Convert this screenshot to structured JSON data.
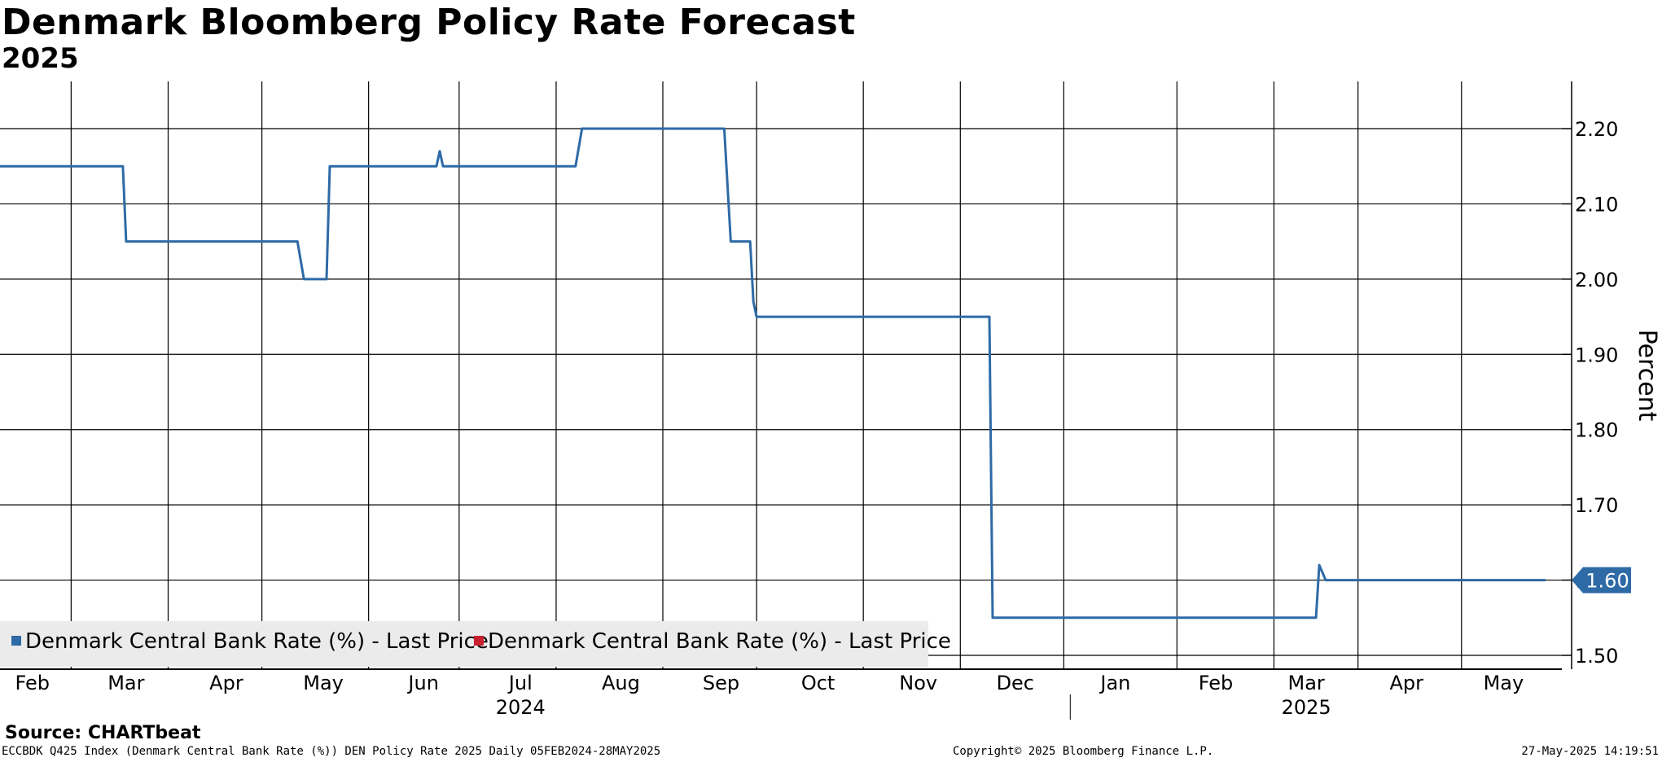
{
  "chart_data": {
    "type": "line",
    "title": "Denmark Bloomberg Policy Rate Forecast",
    "subtitle": "2025",
    "ylabel": "Percent",
    "ylim": [
      1.5,
      2.25
    ],
    "yticks": [
      "2.20",
      "2.10",
      "2.00",
      "1.90",
      "1.80",
      "1.70",
      "1.60",
      "1.50"
    ],
    "ytick_values": [
      2.2,
      2.1,
      2.0,
      1.9,
      1.8,
      1.7,
      1.6,
      1.5
    ],
    "x_range": [
      "2024-02-05",
      "2025-05-28"
    ],
    "month_ticks": [
      {
        "label": "Feb",
        "date": "2024-02-15"
      },
      {
        "label": "Mar",
        "date": "2024-03-15"
      },
      {
        "label": "Apr",
        "date": "2024-04-15"
      },
      {
        "label": "May",
        "date": "2024-05-15"
      },
      {
        "label": "Jun",
        "date": "2024-06-15"
      },
      {
        "label": "Jul",
        "date": "2024-07-15"
      },
      {
        "label": "Aug",
        "date": "2024-08-15"
      },
      {
        "label": "Sep",
        "date": "2024-09-15"
      },
      {
        "label": "Oct",
        "date": "2024-10-15"
      },
      {
        "label": "Nov",
        "date": "2024-11-15"
      },
      {
        "label": "Dec",
        "date": "2024-12-15"
      },
      {
        "label": "Jan",
        "date": "2025-01-15"
      },
      {
        "label": "Feb",
        "date": "2025-02-15"
      },
      {
        "label": "Mar",
        "date": "2025-03-15"
      },
      {
        "label": "Apr",
        "date": "2025-04-15"
      },
      {
        "label": "May",
        "date": "2025-05-15"
      }
    ],
    "gridline_dates": [
      "2024-02-27",
      "2024-03-28",
      "2024-04-26",
      "2024-05-29",
      "2024-06-26",
      "2024-07-26",
      "2024-08-28",
      "2024-09-26",
      "2024-10-29",
      "2024-11-28",
      "2024-12-30",
      "2025-02-03",
      "2025-03-05",
      "2025-03-31",
      "2025-05-02"
    ],
    "year_labels": [
      {
        "label": "2024",
        "date": "2024-07-15"
      },
      {
        "label": "2025",
        "date": "2025-03-15"
      }
    ],
    "year_divider_date": "2025-01-01",
    "last_value_label": "1.60",
    "last_value": 1.6,
    "series": [
      {
        "name": "Denmark Central Bank Rate (%) - Last Price",
        "color": "#2e6aa6",
        "points": [
          [
            "2024-02-05",
            2.15
          ],
          [
            "2024-03-14",
            2.15
          ],
          [
            "2024-03-15",
            2.05
          ],
          [
            "2024-05-07",
            2.05
          ],
          [
            "2024-05-09",
            2.0
          ],
          [
            "2024-05-16",
            2.0
          ],
          [
            "2024-05-17",
            2.15
          ],
          [
            "2024-06-19",
            2.15
          ],
          [
            "2024-06-20",
            2.17
          ],
          [
            "2024-06-21",
            2.15
          ],
          [
            "2024-08-01",
            2.15
          ],
          [
            "2024-08-03",
            2.2
          ],
          [
            "2024-09-16",
            2.2
          ],
          [
            "2024-09-18",
            2.05
          ],
          [
            "2024-09-24",
            2.05
          ],
          [
            "2024-09-25",
            1.97
          ],
          [
            "2024-09-26",
            1.95
          ],
          [
            "2024-12-07",
            1.95
          ],
          [
            "2024-12-08",
            1.55
          ],
          [
            "2025-03-18",
            1.55
          ],
          [
            "2025-03-19",
            1.62
          ],
          [
            "2025-03-21",
            1.6
          ],
          [
            "2025-05-28",
            1.6
          ]
        ]
      }
    ]
  },
  "legend": [
    {
      "label": "Denmark Central Bank Rate (%) - Last Price",
      "color": "#2e6aa6"
    },
    {
      "label": "Denmark Central Bank Rate (%) - Last Price",
      "color": "#c8202f"
    }
  ],
  "source": "Source: CHARTbeat",
  "footer": {
    "left": "ECCBDK Q425 Index (Denmark Central Bank Rate (%)) DEN Policy Rate 2025  Daily 05FEB2024-28MAY2025",
    "center": "Copyright© 2025 Bloomberg Finance L.P.",
    "right": "27-May-2025 14:19:51"
  },
  "colors": {
    "series": "#2e6aa6",
    "grid": "#000000",
    "legend_bg": "#ebebeb"
  }
}
